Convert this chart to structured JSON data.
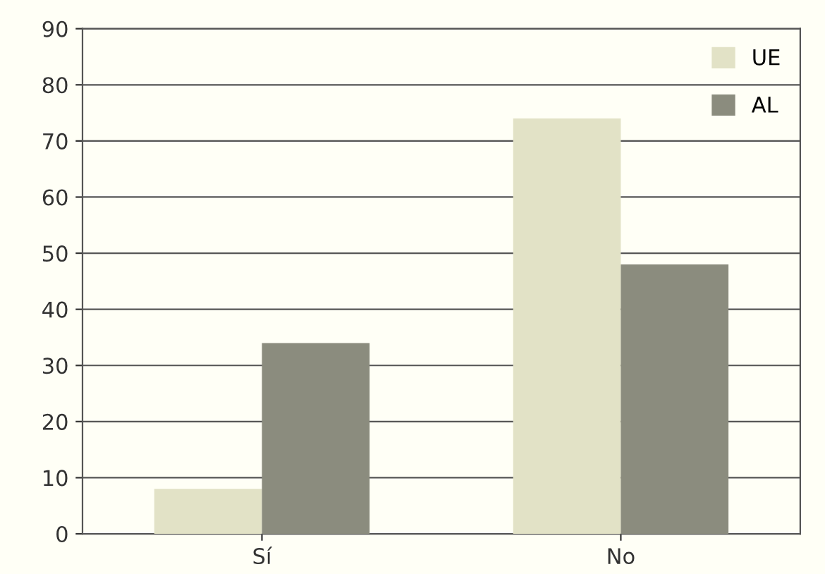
{
  "chart_data": {
    "type": "bar",
    "categories": [
      "Sí",
      "No"
    ],
    "series": [
      {
        "name": "UE",
        "color": "#e2e2c6",
        "values": [
          8,
          74
        ]
      },
      {
        "name": "AL",
        "color": "#8b8c7e",
        "values": [
          34,
          48
        ]
      }
    ],
    "ylim": [
      0,
      90
    ],
    "yticks": [
      0,
      10,
      20,
      30,
      40,
      50,
      60,
      70,
      80,
      90
    ],
    "grid": "y",
    "legend": "top right"
  }
}
